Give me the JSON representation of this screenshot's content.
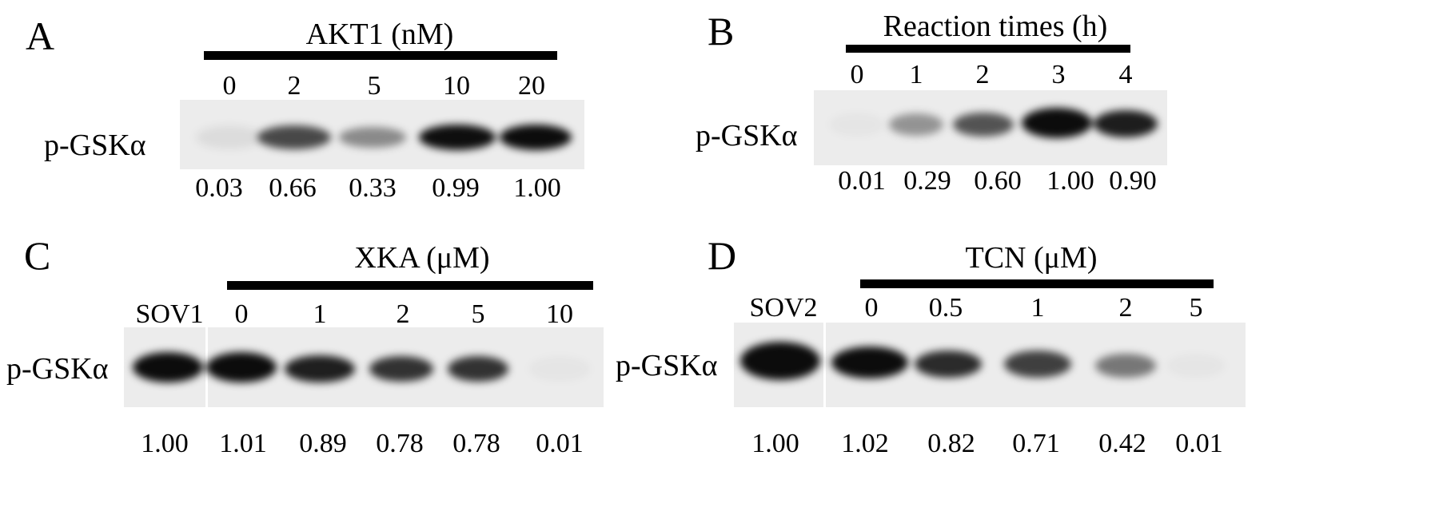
{
  "panels": [
    {
      "letter": "A",
      "title": "AKT1 (nM)",
      "row_label": "p-GSKα",
      "lanes": [
        "0",
        "2",
        "5",
        "10",
        "20"
      ],
      "band_intensity": [
        0.03,
        0.66,
        0.33,
        0.99,
        1.0
      ],
      "values": [
        "0.03",
        "0.66",
        "0.33",
        "0.99",
        "1.00"
      ]
    },
    {
      "letter": "B",
      "title": "Reaction times (h)",
      "row_label": "p-GSKα",
      "lanes": [
        "0",
        "1",
        "2",
        "3",
        "4"
      ],
      "band_intensity": [
        0.01,
        0.29,
        0.6,
        1.0,
        0.9
      ],
      "values": [
        "0.01",
        "0.29",
        "0.60",
        "1.00",
        "0.90"
      ]
    },
    {
      "letter": "C",
      "title": "XKA (μM)",
      "row_label": "p-GSKα",
      "lanes": [
        "SOV1",
        "0",
        "1",
        "2",
        "5",
        "10"
      ],
      "band_intensity": [
        1.0,
        1.01,
        0.89,
        0.78,
        0.78,
        0.01
      ],
      "values": [
        "1.00",
        "1.01",
        "0.89",
        "0.78",
        "0.78",
        "0.01"
      ]
    },
    {
      "letter": "D",
      "title": "TCN (μM)",
      "row_label": "p-GSKα",
      "lanes": [
        "SOV2",
        "0",
        "0.5",
        "1",
        "2",
        "5"
      ],
      "band_intensity": [
        1.0,
        1.02,
        0.82,
        0.71,
        0.42,
        0.01
      ],
      "values": [
        "1.00",
        "1.02",
        "0.82",
        "0.71",
        "0.42",
        "0.01"
      ]
    }
  ]
}
